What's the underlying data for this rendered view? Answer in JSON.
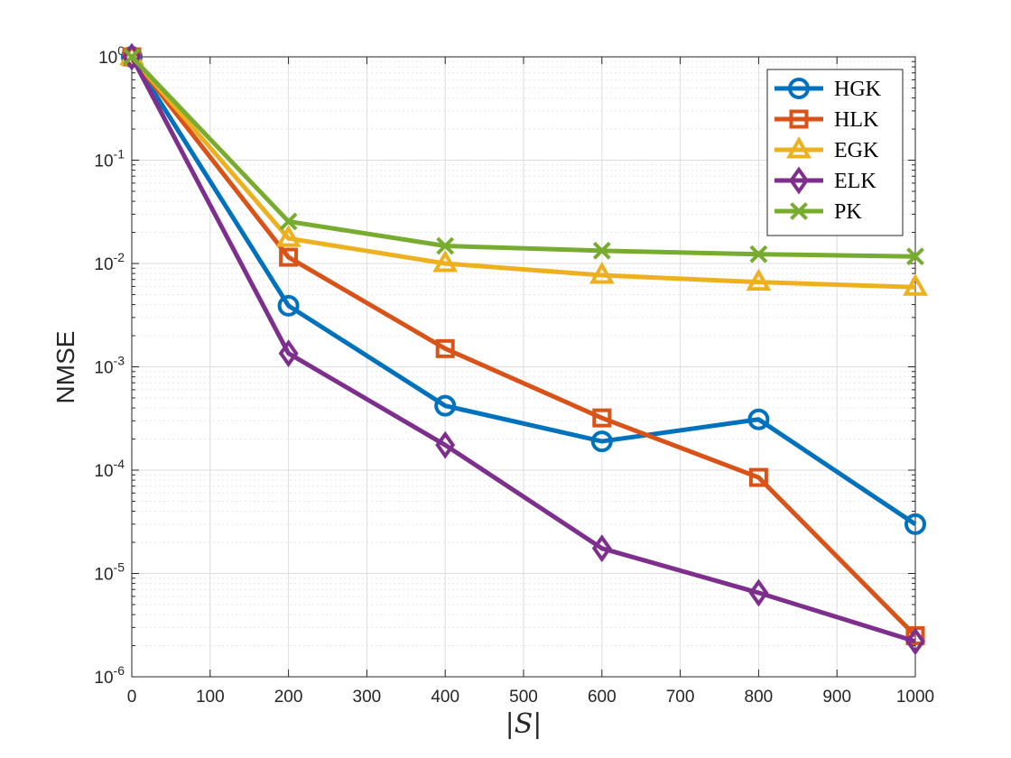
{
  "chart_data": {
    "type": "line",
    "title": "",
    "xlabel": "|S|",
    "ylabel": "NMSE",
    "yscale": "log",
    "xlim": [
      0,
      1000
    ],
    "ylim": [
      1e-06,
      1
    ],
    "x_ticks": [
      "0",
      "100",
      "200",
      "300",
      "400",
      "500",
      "600",
      "700",
      "800",
      "900",
      "1000"
    ],
    "y_ticks": [
      {
        "base": "10",
        "exp": "0"
      },
      {
        "base": "10",
        "exp": "-1"
      },
      {
        "base": "10",
        "exp": "-2"
      },
      {
        "base": "10",
        "exp": "-3"
      },
      {
        "base": "10",
        "exp": "-4"
      },
      {
        "base": "10",
        "exp": "-5"
      },
      {
        "base": "10",
        "exp": "-6"
      }
    ],
    "grid": true,
    "legend_position": "top-right",
    "x": [
      0,
      200,
      400,
      600,
      800,
      1000
    ],
    "series": [
      {
        "name": "HGK",
        "marker": "circle",
        "color": "#0072BD",
        "values": [
          1.0,
          0.0039,
          0.00042,
          0.00019,
          0.00031,
          3e-05
        ]
      },
      {
        "name": "HLK",
        "marker": "square",
        "color": "#D95319",
        "values": [
          1.0,
          0.0115,
          0.0015,
          0.00032,
          8.5e-05,
          2.5e-06
        ]
      },
      {
        "name": "EGK",
        "marker": "triangle",
        "color": "#EDB120",
        "values": [
          1.0,
          0.0175,
          0.01,
          0.0077,
          0.0066,
          0.0059
        ]
      },
      {
        "name": "ELK",
        "marker": "diamond",
        "color": "#7E2F8E",
        "values": [
          1.0,
          0.00135,
          0.000175,
          1.75e-05,
          6.5e-06,
          2.2e-06
        ]
      },
      {
        "name": "PK",
        "marker": "x",
        "color": "#77AC30",
        "values": [
          1.0,
          0.0255,
          0.0148,
          0.0133,
          0.0123,
          0.0117
        ]
      }
    ]
  }
}
